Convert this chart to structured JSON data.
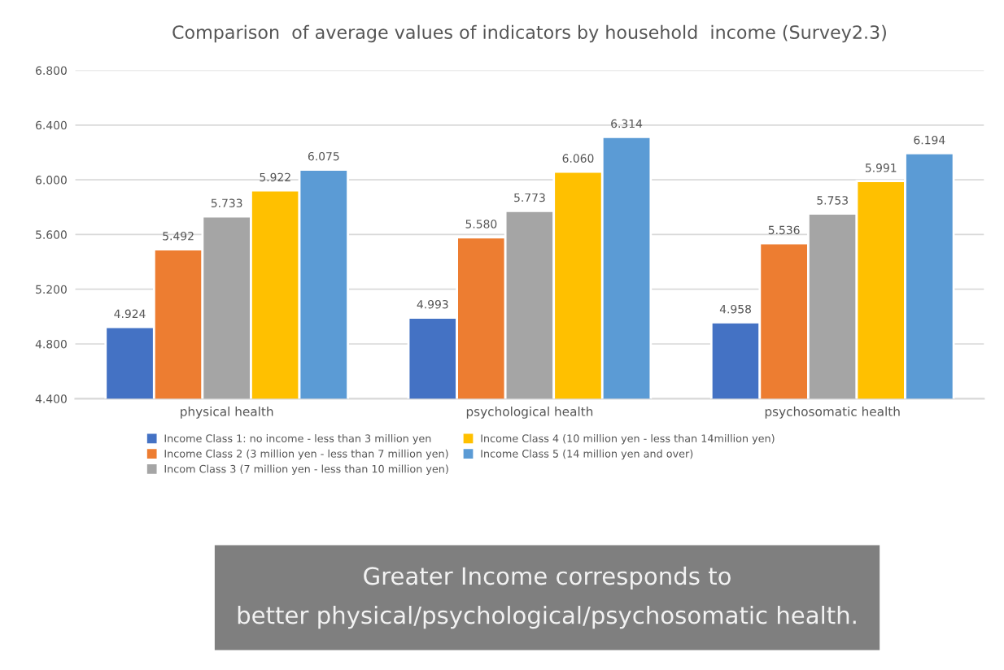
{
  "chart_data": {
    "type": "bar",
    "title": "Comparison  of average values of indicators by household  income (Survey2.3)",
    "categories": [
      "physical health",
      "psychological health",
      "psychosomatic health"
    ],
    "series": [
      {
        "name": "Income Class 1: no income - less than 3 million yen",
        "color": "#4472c4",
        "values": [
          4.924,
          4.993,
          4.958
        ],
        "value_labels": [
          "4.924",
          "4.993",
          "4.958"
        ]
      },
      {
        "name": "Income Class 2 (3 million yen - less than 7 million yen)",
        "color": "#ed7d31",
        "values": [
          5.492,
          5.58,
          5.536
        ],
        "value_labels": [
          "5.492",
          "5.580",
          "5.536"
        ]
      },
      {
        "name": "Incom Class 3 (7 million yen - less than 10 million yen)",
        "color": "#a5a5a5",
        "values": [
          5.733,
          5.773,
          5.753
        ],
        "value_labels": [
          "5.733",
          "5.773",
          "5.753"
        ]
      },
      {
        "name": "Income Class 4 (10 million yen - less than 14million yen)",
        "color": "#ffc000",
        "values": [
          5.922,
          6.06,
          5.991
        ],
        "value_labels": [
          "5.922",
          "6.060",
          "5.991"
        ]
      },
      {
        "name": "Income Class 5 (14 million yen and over)",
        "color": "#5b9bd5",
        "values": [
          6.075,
          6.314,
          6.194
        ],
        "value_labels": [
          "6.075",
          "6.314",
          "6.194"
        ]
      }
    ],
    "ylim": [
      4.4,
      6.8
    ],
    "yticks": [
      {
        "value": 4.4,
        "label": "4.400"
      },
      {
        "value": 4.8,
        "label": "4.800"
      },
      {
        "value": 5.2,
        "label": "5.200"
      },
      {
        "value": 5.6,
        "label": "5.600"
      },
      {
        "value": 6.0,
        "label": "6.000"
      },
      {
        "value": 6.4,
        "label": "6.400"
      },
      {
        "value": 6.8,
        "label": "6.800"
      }
    ],
    "grid": "y",
    "legend": "bottom",
    "annotations": [
      "Greater Income corresponds to\nbetter physical/psychological/psychosomatic health."
    ]
  }
}
